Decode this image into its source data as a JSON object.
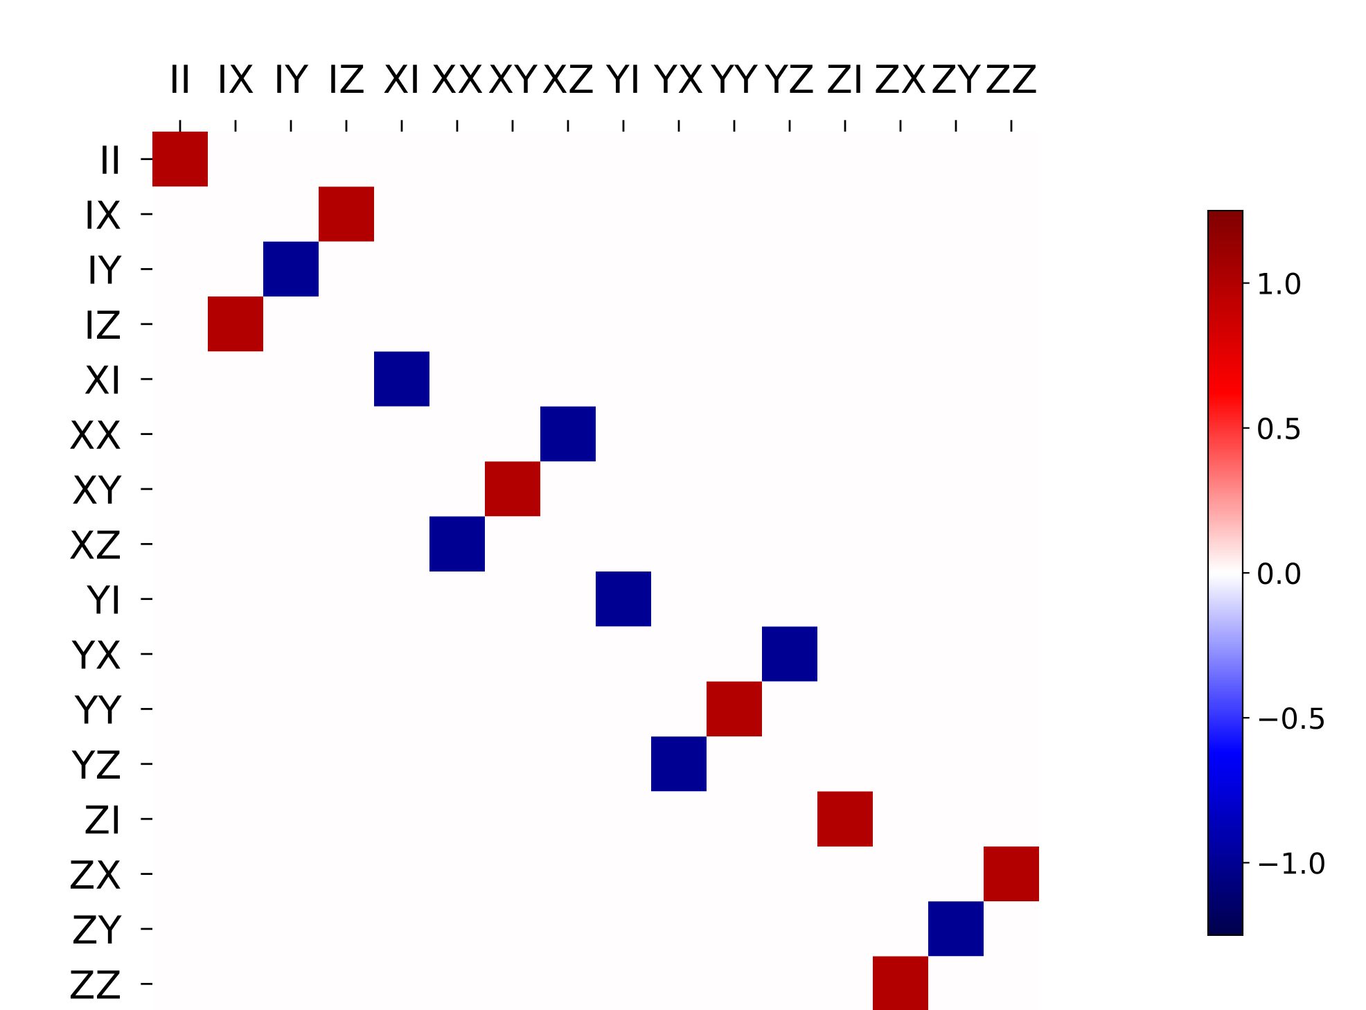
{
  "chart_data": {
    "type": "heatmap",
    "categories": [
      "II",
      "IX",
      "IY",
      "IZ",
      "XI",
      "XX",
      "XY",
      "XZ",
      "YI",
      "YX",
      "YY",
      "YZ",
      "ZI",
      "ZX",
      "ZY",
      "ZZ"
    ],
    "y_categories": [
      "II",
      "IX",
      "IY",
      "IZ",
      "XI",
      "XX",
      "XY",
      "XZ",
      "YI",
      "YX",
      "YY",
      "YZ",
      "ZI",
      "ZX",
      "ZY",
      "ZZ"
    ],
    "cells": [
      [
        1,
        0,
        0,
        0,
        0,
        0,
        0,
        0,
        0,
        0,
        0,
        0,
        0,
        0,
        0,
        0
      ],
      [
        0,
        0,
        0,
        1,
        0,
        0,
        0,
        0,
        0,
        0,
        0,
        0,
        0,
        0,
        0,
        0
      ],
      [
        0,
        0,
        -1,
        0,
        0,
        0,
        0,
        0,
        0,
        0,
        0,
        0,
        0,
        0,
        0,
        0
      ],
      [
        0,
        1,
        0,
        0,
        0,
        0,
        0,
        0,
        0,
        0,
        0,
        0,
        0,
        0,
        0,
        0
      ],
      [
        0,
        0,
        0,
        0,
        -1,
        0,
        0,
        0,
        0,
        0,
        0,
        0,
        0,
        0,
        0,
        0
      ],
      [
        0,
        0,
        0,
        0,
        0,
        0,
        0,
        -1,
        0,
        0,
        0,
        0,
        0,
        0,
        0,
        0
      ],
      [
        0,
        0,
        0,
        0,
        0,
        0,
        1,
        0,
        0,
        0,
        0,
        0,
        0,
        0,
        0,
        0
      ],
      [
        0,
        0,
        0,
        0,
        0,
        -1,
        0,
        0,
        0,
        0,
        0,
        0,
        0,
        0,
        0,
        0
      ],
      [
        0,
        0,
        0,
        0,
        0,
        0,
        0,
        0,
        -1,
        0,
        0,
        0,
        0,
        0,
        0,
        0
      ],
      [
        0,
        0,
        0,
        0,
        0,
        0,
        0,
        0,
        0,
        0,
        0,
        -1,
        0,
        0,
        0,
        0
      ],
      [
        0,
        0,
        0,
        0,
        0,
        0,
        0,
        0,
        0,
        0,
        1,
        0,
        0,
        0,
        0,
        0
      ],
      [
        0,
        0,
        0,
        0,
        0,
        0,
        0,
        0,
        0,
        -1,
        0,
        0,
        0,
        0,
        0,
        0
      ],
      [
        0,
        0,
        0,
        0,
        0,
        0,
        0,
        0,
        0,
        0,
        0,
        0,
        1,
        0,
        0,
        0
      ],
      [
        0,
        0,
        0,
        0,
        0,
        0,
        0,
        0,
        0,
        0,
        0,
        0,
        0,
        0,
        0,
        1
      ],
      [
        0,
        0,
        0,
        0,
        0,
        0,
        0,
        0,
        0,
        0,
        0,
        0,
        0,
        0,
        -1,
        0
      ],
      [
        0,
        0,
        0,
        0,
        0,
        0,
        0,
        0,
        0,
        0,
        0,
        0,
        0,
        1,
        0,
        0
      ]
    ],
    "clim": [
      -1.25,
      1.25
    ],
    "cticks": [
      {
        "value": -1.0,
        "label": "−1.0"
      },
      {
        "value": -0.5,
        "label": "−0.5"
      },
      {
        "value": 0.0,
        "label": "0.0"
      },
      {
        "value": 0.5,
        "label": "0.5"
      },
      {
        "value": 1.0,
        "label": "1.0"
      }
    ]
  }
}
